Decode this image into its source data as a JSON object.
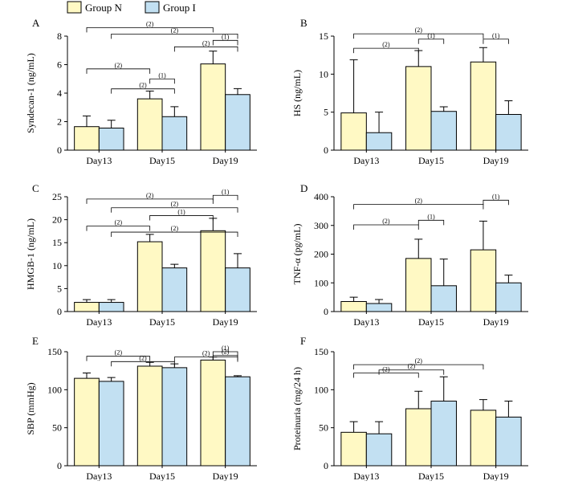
{
  "legend": {
    "entries": [
      {
        "name": "Group N",
        "color": "#fff9c4"
      },
      {
        "name": "Group I",
        "color": "#c2e0f2"
      }
    ],
    "placement": "top-left"
  },
  "chart_data": [
    {
      "panel": "A",
      "type": "bar",
      "ylabel": "Syndecan-1 (ng/mL)",
      "ylim": [
        0,
        8
      ],
      "yticks": [
        0,
        2,
        4,
        6,
        8
      ],
      "categories": [
        "Day13",
        "Day15",
        "Day19"
      ],
      "series": [
        {
          "name": "Group N",
          "values": [
            1.65,
            3.6,
            6.05
          ],
          "errors": [
            0.75,
            0.55,
            0.9
          ]
        },
        {
          "name": "Group I",
          "values": [
            1.55,
            2.35,
            3.9
          ],
          "errors": [
            0.55,
            0.7,
            0.42
          ]
        }
      ],
      "annotations": [
        {
          "label": "(2)",
          "from": [
            0,
            0
          ],
          "to": [
            2,
            0
          ],
          "level": 8.6
        },
        {
          "label": "(2)",
          "from": [
            0,
            1
          ],
          "to": [
            2,
            1
          ],
          "level": 8.15
        },
        {
          "label": "(1)",
          "from": [
            2,
            0
          ],
          "to": [
            2,
            1
          ],
          "level": 7.7
        },
        {
          "label": "(2)",
          "from": [
            1,
            1
          ],
          "to": [
            2,
            1
          ],
          "level": 7.25
        },
        {
          "label": "(2)",
          "from": [
            0,
            0
          ],
          "to": [
            1,
            0
          ],
          "level": 5.7
        },
        {
          "label": "(1)",
          "from": [
            1,
            0
          ],
          "to": [
            1,
            1
          ],
          "level": 5.0
        },
        {
          "label": "(2)",
          "from": [
            0,
            1
          ],
          "to": [
            1,
            1
          ],
          "level": 4.3
        }
      ]
    },
    {
      "panel": "B",
      "type": "bar",
      "ylabel": "HS (ng/mL)",
      "ylim": [
        0,
        15
      ],
      "yticks": [
        0,
        5,
        10,
        15
      ],
      "categories": [
        "Day13",
        "Day15",
        "Day19"
      ],
      "series": [
        {
          "name": "Group N",
          "values": [
            4.9,
            11.0,
            11.6
          ],
          "errors": [
            7.0,
            2.1,
            1.9
          ]
        },
        {
          "name": "Group I",
          "values": [
            2.3,
            5.1,
            4.7
          ],
          "errors": [
            2.7,
            0.6,
            1.8
          ]
        }
      ],
      "annotations": [
        {
          "label": "(2)",
          "from": [
            0,
            0
          ],
          "to": [
            2,
            0
          ],
          "level": 15.3
        },
        {
          "label": "(1)",
          "from": [
            1,
            0
          ],
          "to": [
            1,
            1
          ],
          "level": 14.6
        },
        {
          "label": "(1)",
          "from": [
            2,
            0
          ],
          "to": [
            2,
            1
          ],
          "level": 14.6
        },
        {
          "label": "(2)",
          "from": [
            0,
            0
          ],
          "to": [
            1,
            0
          ],
          "level": 13.4
        }
      ]
    },
    {
      "panel": "C",
      "type": "bar",
      "ylabel": "HMGB-1 (ng/mL)",
      "ylim": [
        0,
        25
      ],
      "yticks": [
        0,
        5,
        10,
        15,
        20,
        25
      ],
      "categories": [
        "Day13",
        "Day15",
        "Day19"
      ],
      "series": [
        {
          "name": "Group N",
          "values": [
            2.0,
            15.2,
            17.6
          ],
          "errors": [
            0.6,
            1.6,
            2.7
          ]
        },
        {
          "name": "Group I",
          "values": [
            2.0,
            9.5,
            9.5
          ],
          "errors": [
            0.6,
            0.8,
            3.1
          ]
        }
      ],
      "annotations": [
        {
          "label": "(2)",
          "from": [
            0,
            0
          ],
          "to": [
            2,
            0
          ],
          "level": 24.5
        },
        {
          "label": "(1)",
          "from": [
            2,
            0
          ],
          "to": [
            2,
            1
          ],
          "level": 25.3
        },
        {
          "label": "(2)",
          "from": [
            0,
            1
          ],
          "to": [
            2,
            1
          ],
          "level": 22.6
        },
        {
          "label": "(1)",
          "from": [
            1,
            0
          ],
          "to": [
            2,
            0
          ],
          "level": 20.9
        },
        {
          "label": "(2)",
          "from": [
            0,
            0
          ],
          "to": [
            1,
            0
          ],
          "level": 18.6
        },
        {
          "label": "(2)",
          "from": [
            0,
            1
          ],
          "to": [
            2,
            1
          ],
          "level": 17.3
        }
      ]
    },
    {
      "panel": "D",
      "type": "bar",
      "ylabel": "TNF-α (pg/mL)",
      "ylim": [
        0,
        400
      ],
      "yticks": [
        0,
        100,
        200,
        300,
        400
      ],
      "categories": [
        "Day13",
        "Day15",
        "Day19"
      ],
      "series": [
        {
          "name": "Group N",
          "values": [
            35,
            185,
            215
          ],
          "errors": [
            15,
            67,
            100
          ]
        },
        {
          "name": "Group I",
          "values": [
            28,
            90,
            100
          ],
          "errors": [
            14,
            93,
            27
          ]
        }
      ],
      "annotations": [
        {
          "label": "(2)",
          "from": [
            0,
            0
          ],
          "to": [
            2,
            0
          ],
          "level": 373
        },
        {
          "label": "(1)",
          "from": [
            2,
            0
          ],
          "to": [
            2,
            1
          ],
          "level": 388
        },
        {
          "label": "(2)",
          "from": [
            0,
            0
          ],
          "to": [
            1,
            0
          ],
          "level": 302
        },
        {
          "label": "(1)",
          "from": [
            1,
            0
          ],
          "to": [
            1,
            1
          ],
          "level": 318
        }
      ]
    },
    {
      "panel": "E",
      "type": "bar",
      "ylabel": "SBP (mmHg)",
      "ylim": [
        0,
        150
      ],
      "yticks": [
        0,
        50,
        100,
        150
      ],
      "categories": [
        "Day13",
        "Day15",
        "Day19"
      ],
      "series": [
        {
          "name": "Group N",
          "values": [
            115,
            131,
            139
          ],
          "errors": [
            7,
            5,
            4
          ]
        },
        {
          "name": "Group I",
          "values": [
            111,
            129,
            117
          ],
          "errors": [
            5,
            5,
            1.5
          ]
        }
      ],
      "annotations": [
        {
          "label": "(2)",
          "from": [
            0,
            0
          ],
          "to": [
            1,
            0
          ],
          "level": 144
        },
        {
          "label": "(2)",
          "from": [
            0,
            1
          ],
          "to": [
            1,
            1
          ],
          "level": 137
        },
        {
          "label": "(2)",
          "from": [
            1,
            1
          ],
          "to": [
            2,
            1
          ],
          "level": 143
        },
        {
          "label": "(1)",
          "from": [
            2,
            0
          ],
          "to": [
            2,
            1
          ],
          "level": 150
        },
        {
          "label": "(2)",
          "from": [
            2,
            0
          ],
          "to": [
            2,
            1
          ],
          "level": 145
        }
      ]
    },
    {
      "panel": "F",
      "type": "bar",
      "ylabel": "Proteinuria (mg/24 h)",
      "ylim": [
        0,
        150
      ],
      "yticks": [
        0,
        50,
        100,
        150
      ],
      "categories": [
        "Day13",
        "Day15",
        "Day19"
      ],
      "series": [
        {
          "name": "Group N",
          "values": [
            44,
            75,
            73
          ],
          "errors": [
            14,
            23,
            14
          ]
        },
        {
          "name": "Group I",
          "values": [
            42,
            85,
            64
          ],
          "errors": [
            16,
            32,
            21
          ]
        }
      ],
      "annotations": [
        {
          "label": "(2)",
          "from": [
            0,
            0
          ],
          "to": [
            2,
            0
          ],
          "level": 133
        },
        {
          "label": "(2)",
          "from": [
            0,
            0
          ],
          "to": [
            1,
            0
          ],
          "level": 122
        },
        {
          "label": "(2)",
          "from": [
            0,
            1
          ],
          "to": [
            1,
            1
          ],
          "level": 126
        }
      ]
    }
  ]
}
